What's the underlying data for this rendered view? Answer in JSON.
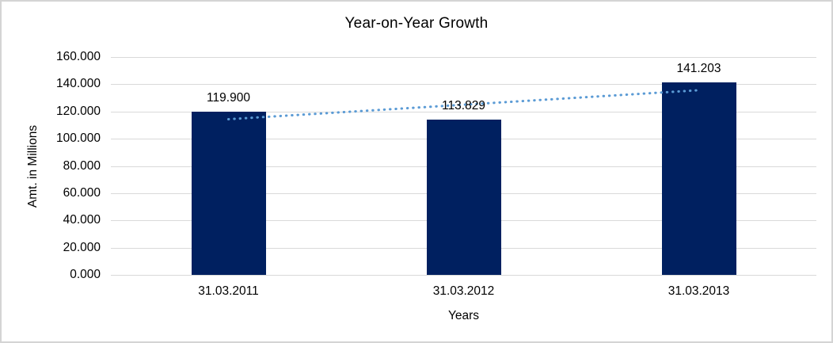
{
  "chart_data": {
    "type": "bar",
    "title": "Year-on-Year Growth",
    "xlabel": "Years",
    "ylabel": "Amt. in Millions",
    "categories": [
      "31.03.2011",
      "31.03.2012",
      "31.03.2013"
    ],
    "values": [
      119.9,
      113.829,
      141.203
    ],
    "value_labels": [
      "119.900",
      "113.829",
      "141.203"
    ],
    "ylim": [
      0,
      160
    ],
    "ytick_step": 20,
    "ytick_labels": [
      "0.000",
      "20.000",
      "40.000",
      "60.000",
      "80.000",
      "100.000",
      "120.000",
      "140.000",
      "160.000"
    ],
    "grid": true,
    "legend": "none",
    "colors": {
      "bar": "#002060",
      "trendline": "#5b9bd5",
      "gridline": "#d9d9d9",
      "text": "#000000",
      "frame_border": "#d4d4d4",
      "background": "#ffffff"
    },
    "trendline": {
      "type": "linear",
      "style": "dotted",
      "start_value": 114.33,
      "end_value": 135.63
    }
  }
}
